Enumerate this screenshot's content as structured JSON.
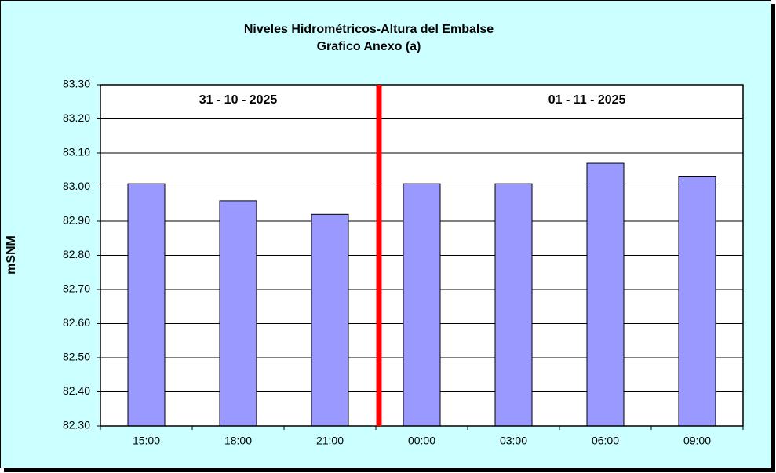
{
  "chart_data": {
    "type": "bar",
    "title": "Niveles Hidrométricos-Altura del Embalse",
    "subtitle": "Grafico Anexo (a)",
    "y_label": "mSNM",
    "annotations": [
      "31 - 10 - 2025",
      "01 - 11 - 2025"
    ],
    "categories": [
      "15:00",
      "18:00",
      "21:00",
      "00:00",
      "03:00",
      "06:00",
      "09:00"
    ],
    "values": [
      83.01,
      82.96,
      82.92,
      83.01,
      83.01,
      83.07,
      83.03
    ],
    "color": "#9999ff",
    "ylim": [
      82.3,
      83.3
    ],
    "yticks": [
      {
        "value": 82.3,
        "label": "82.30"
      },
      {
        "value": 82.4,
        "label": "82.40"
      },
      {
        "value": 82.5,
        "label": "82.50"
      },
      {
        "value": 82.6,
        "label": "82.60"
      },
      {
        "value": 82.7,
        "label": "82.70"
      },
      {
        "value": 82.8,
        "label": "82.80"
      },
      {
        "value": 82.9,
        "label": "82.90"
      },
      {
        "value": 83.0,
        "label": "83.00"
      },
      {
        "value": 83.1,
        "label": "83.10"
      },
      {
        "value": 83.2,
        "label": "83.20"
      },
      {
        "value": 83.3,
        "label": "83.30"
      }
    ],
    "grid": true
  }
}
